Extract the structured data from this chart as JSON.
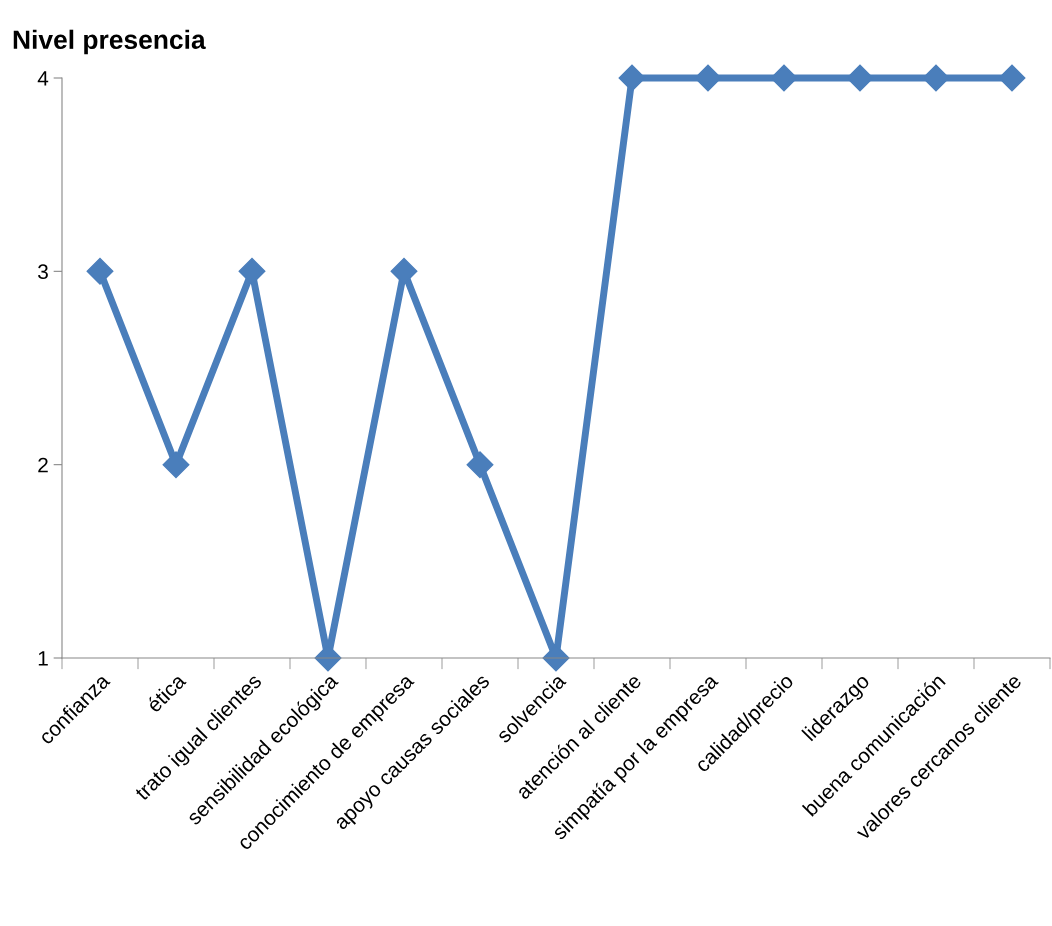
{
  "chart_data": {
    "type": "line",
    "ylabel": "Nivel presencia",
    "categories": [
      "confianza",
      "ética",
      "trato igual clientes",
      "sensibilidad ecológica",
      "conocimiento de empresa",
      "apoyo causas sociales",
      "solvencia",
      "atención al cliente",
      "simpatía por la empresa",
      "calidad/precio",
      "liderazgo",
      "buena comunicación",
      "valores cercanos cliente"
    ],
    "series": [
      {
        "color": "#4a7ebb",
        "values": [
          3,
          2,
          3,
          1,
          3,
          2,
          1,
          4,
          4,
          4,
          4,
          4,
          4
        ]
      }
    ],
    "ylim": [
      1,
      4
    ],
    "yticks": [
      1,
      2,
      3,
      4
    ],
    "grid": false,
    "legend": false,
    "marker": "diamond",
    "line_style": "solid"
  }
}
